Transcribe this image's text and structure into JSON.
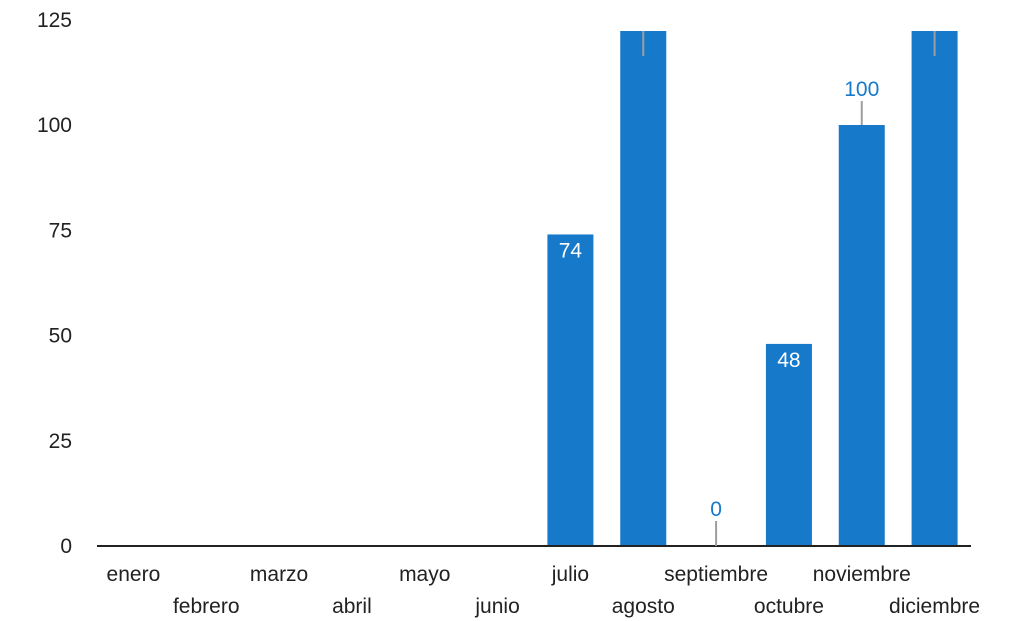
{
  "chart_data": {
    "type": "bar",
    "title": "",
    "xlabel": "",
    "ylabel": "",
    "categories": [
      "enero",
      "febrero",
      "marzo",
      "abril",
      "mayo",
      "junio",
      "julio",
      "agosto",
      "septiembre",
      "octubre",
      "noviembre",
      "diciembre"
    ],
    "values": [
      null,
      null,
      null,
      null,
      null,
      null,
      74,
      128,
      0,
      48,
      100,
      128
    ],
    "data_labels": [
      "",
      "",
      "",
      "",
      "",
      "",
      "74",
      "",
      "0",
      "48",
      "100",
      ""
    ],
    "ylim": [
      0,
      125
    ],
    "yticks": [
      0,
      25,
      50,
      75,
      100,
      125
    ],
    "grid": false,
    "legend": "none",
    "colors": {
      "bar": "#1679c9",
      "label_inside": "#ffffff",
      "label_outside": "#1679c9",
      "leader": "#9e9e9e",
      "axis": "#222222"
    }
  }
}
